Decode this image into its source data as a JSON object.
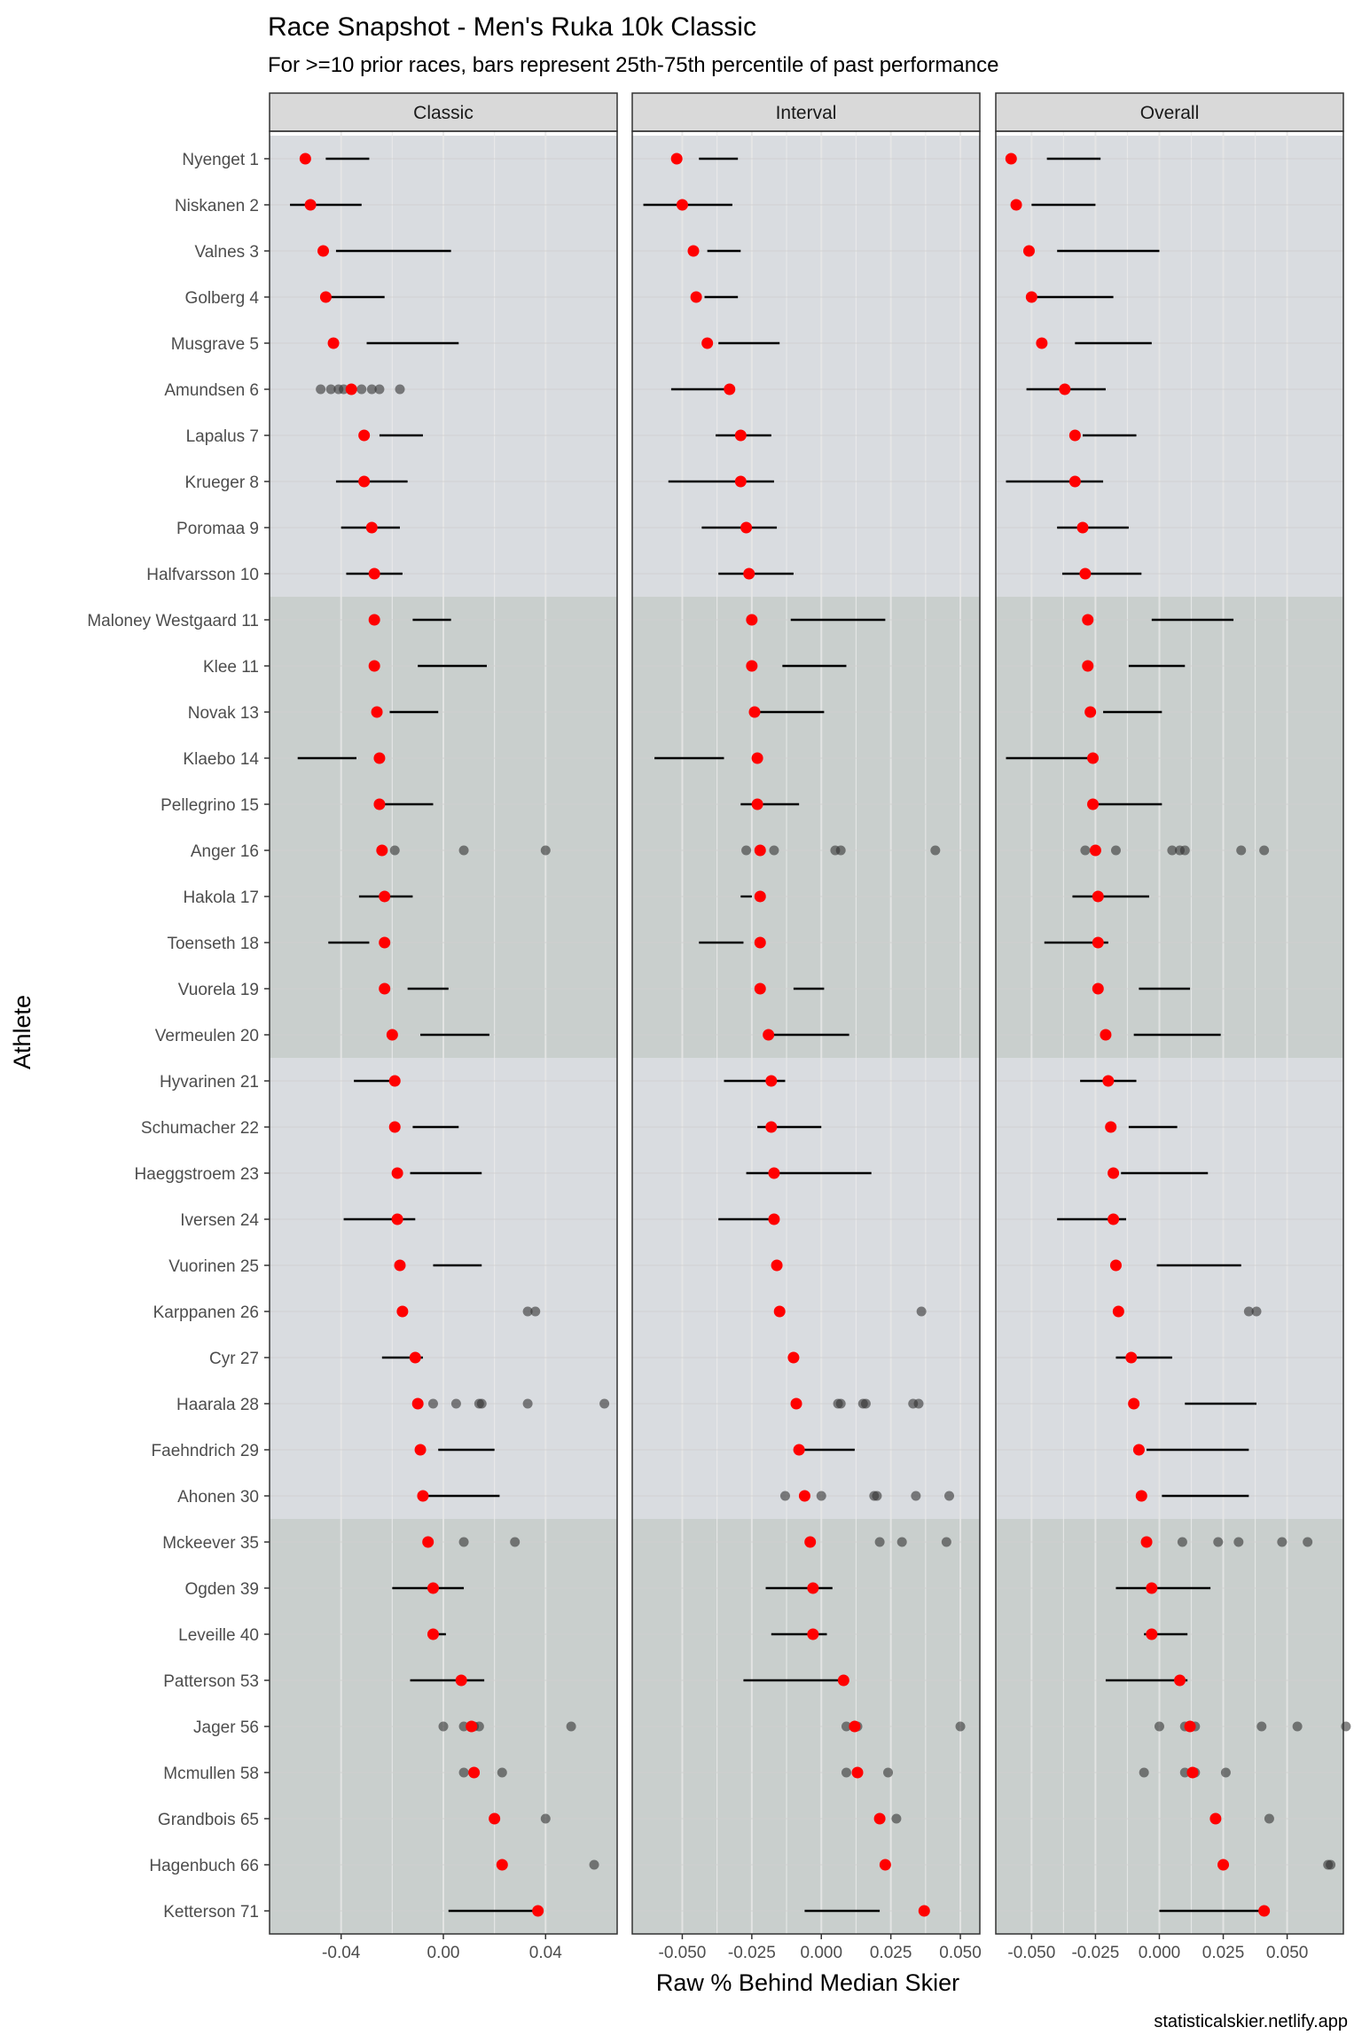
{
  "chart_data": {
    "type": "scatter",
    "title": "Race Snapshot -  Men's Ruka 10k Classic",
    "subtitle": "For >=10 prior races, bars represent 25th-75th percentile of past performance",
    "xlabel": "Raw % Behind Median Skier",
    "ylabel": "Athlete",
    "caption": "statisticalskier.netlify.app",
    "colors": {
      "current": "#ff0000",
      "past": "#333333",
      "bar": "#000000",
      "band_a": "#d9dce0",
      "band_b": "#c9cfcd",
      "strip": "#d9d9d9"
    },
    "groups": [
      {
        "start": 0,
        "end": 9,
        "shade": "band_a"
      },
      {
        "start": 10,
        "end": 19,
        "shade": "band_b"
      },
      {
        "start": 20,
        "end": 29,
        "shade": "band_a"
      },
      {
        "start": 30,
        "end": 38,
        "shade": "band_b"
      }
    ],
    "athletes": [
      "Nyenget 1",
      "Niskanen 2",
      "Valnes 3",
      "Golberg 4",
      "Musgrave 5",
      "Amundsen 6",
      "Lapalus 7",
      "Krueger 8",
      "Poromaa 9",
      "Halfvarsson 10",
      "Maloney Westgaard 11",
      "Klee 11",
      "Novak 13",
      "Klaebo 14",
      "Pellegrino 15",
      "Anger 16",
      "Hakola 17",
      "Toenseth 18",
      "Vuorela 19",
      "Vermeulen 20",
      "Hyvarinen 21",
      "Schumacher 22",
      "Haeggstroem 23",
      "Iversen 24",
      "Vuorinen 25",
      "Karppanen 26",
      "Cyr 27",
      "Haarala 28",
      "Faehndrich 29",
      "Ahonen 30",
      "Mckeever 35",
      "Ogden 39",
      "Leveille 40",
      "Patterson 53",
      "Jager 56",
      "Mcmullen 58",
      "Grandbois 65",
      "Hagenbuch 66",
      "Ketterson 71"
    ],
    "panels": [
      {
        "label": "Classic",
        "xlim": [
          -0.068,
          0.068
        ],
        "ticks": [
          -0.04,
          0.0,
          0.04
        ],
        "tick_labels": [
          "-0.04",
          "0.00",
          "0.04"
        ],
        "current": [
          -0.054,
          -0.052,
          -0.047,
          -0.046,
          -0.043,
          -0.036,
          -0.031,
          -0.031,
          -0.028,
          -0.027,
          -0.027,
          -0.027,
          -0.026,
          -0.025,
          -0.025,
          -0.024,
          -0.023,
          -0.023,
          -0.023,
          -0.02,
          -0.019,
          -0.019,
          -0.018,
          -0.018,
          -0.017,
          -0.016,
          -0.011,
          -0.01,
          -0.009,
          -0.008,
          -0.006,
          -0.004,
          -0.004,
          0.007,
          0.011,
          0.012,
          0.02,
          0.023,
          0.037
        ],
        "bars": [
          [
            -0.046,
            -0.029
          ],
          [
            -0.06,
            -0.032
          ],
          [
            -0.042,
            0.003
          ],
          [
            -0.044,
            -0.023
          ],
          [
            -0.03,
            0.006
          ],
          null,
          [
            -0.025,
            -0.008
          ],
          [
            -0.042,
            -0.014
          ],
          [
            -0.04,
            -0.017
          ],
          [
            -0.038,
            -0.016
          ],
          [
            -0.012,
            0.003
          ],
          [
            -0.01,
            0.017
          ],
          [
            -0.021,
            -0.002
          ],
          [
            -0.057,
            -0.034
          ],
          [
            -0.026,
            -0.004
          ],
          null,
          [
            -0.033,
            -0.012
          ],
          [
            -0.045,
            -0.029
          ],
          [
            -0.014,
            0.002
          ],
          [
            -0.009,
            0.018
          ],
          [
            -0.035,
            -0.02
          ],
          [
            -0.012,
            0.006
          ],
          [
            -0.013,
            0.015
          ],
          [
            -0.039,
            -0.011
          ],
          [
            -0.004,
            0.015
          ],
          null,
          [
            -0.024,
            -0.008
          ],
          null,
          [
            -0.002,
            0.02
          ],
          [
            -0.008,
            0.022
          ],
          null,
          [
            -0.02,
            0.008
          ],
          [
            -0.006,
            0.001
          ],
          [
            -0.013,
            0.016
          ],
          null,
          null,
          null,
          null,
          [
            0.002,
            0.036
          ]
        ],
        "past": [
          [],
          [],
          [],
          [],
          [],
          [
            -0.048,
            -0.044,
            -0.041,
            -0.039,
            -0.036,
            -0.032,
            -0.028,
            -0.025,
            -0.017
          ],
          [],
          [],
          [],
          [],
          [],
          [],
          [],
          [],
          [],
          [
            -0.019,
            0.008,
            0.04
          ],
          [],
          [],
          [],
          [],
          [],
          [],
          [],
          [],
          [],
          [
            0.033,
            0.036
          ],
          [],
          [
            -0.004,
            0.005,
            0.014,
            0.015,
            0.033,
            0.063
          ],
          [],
          [],
          [
            0.008,
            0.028
          ],
          [],
          [],
          [],
          [
            0.0,
            0.008,
            0.012,
            0.014,
            0.05
          ],
          [
            0.008,
            0.023
          ],
          [
            0.04
          ],
          [
            0.059
          ],
          []
        ]
      },
      {
        "label": "Interval",
        "xlim": [
          -0.068,
          0.057
        ],
        "ticks": [
          -0.05,
          -0.025,
          0.0,
          0.025,
          0.05
        ],
        "tick_labels": [
          "-0.050",
          "-0.025",
          "0.000",
          "0.025",
          "0.050"
        ],
        "current": [
          -0.052,
          -0.05,
          -0.046,
          -0.045,
          -0.041,
          -0.033,
          -0.029,
          -0.029,
          -0.027,
          -0.026,
          -0.025,
          -0.025,
          -0.024,
          -0.023,
          -0.023,
          -0.022,
          -0.022,
          -0.022,
          -0.022,
          -0.019,
          -0.018,
          -0.018,
          -0.017,
          -0.017,
          -0.016,
          -0.015,
          -0.01,
          -0.009,
          -0.008,
          -0.006,
          -0.004,
          -0.003,
          -0.003,
          0.008,
          0.012,
          0.013,
          0.021,
          0.023,
          0.037
        ],
        "bars": [
          [
            -0.044,
            -0.03
          ],
          [
            -0.064,
            -0.032
          ],
          [
            -0.041,
            -0.029
          ],
          [
            -0.042,
            -0.03
          ],
          [
            -0.037,
            -0.015
          ],
          [
            -0.054,
            -0.034
          ],
          [
            -0.038,
            -0.018
          ],
          [
            -0.055,
            -0.017
          ],
          [
            -0.043,
            -0.016
          ],
          [
            -0.037,
            -0.01
          ],
          [
            -0.011,
            0.023
          ],
          [
            -0.014,
            0.009
          ],
          [
            -0.024,
            0.001
          ],
          [
            -0.06,
            -0.035
          ],
          [
            -0.029,
            -0.008
          ],
          null,
          [
            -0.029,
            -0.025
          ],
          [
            -0.044,
            -0.028
          ],
          [
            -0.01,
            0.001
          ],
          [
            -0.02,
            0.01
          ],
          [
            -0.035,
            -0.013
          ],
          [
            -0.023,
            0.0
          ],
          [
            -0.027,
            0.018
          ],
          [
            -0.037,
            -0.018
          ],
          null,
          null,
          [
            -0.012,
            -0.008
          ],
          null,
          [
            -0.01,
            0.012
          ],
          null,
          null,
          [
            -0.02,
            0.004
          ],
          [
            -0.018,
            0.002
          ],
          [
            -0.028,
            0.008
          ],
          null,
          null,
          null,
          null,
          [
            -0.006,
            0.021
          ]
        ],
        "past": [
          [],
          [],
          [],
          [],
          [],
          [],
          [],
          [],
          [],
          [],
          [],
          [],
          [],
          [],
          [],
          [
            -0.027,
            -0.017,
            0.005,
            0.007,
            0.041
          ],
          [],
          [],
          [],
          [],
          [],
          [],
          [],
          [],
          [],
          [
            0.036
          ],
          [],
          [
            0.006,
            0.007,
            0.015,
            0.016,
            0.033,
            0.035
          ],
          [],
          [
            -0.013,
            0.0,
            0.019,
            0.02,
            0.034,
            0.046
          ],
          [
            0.021,
            0.029,
            0.045
          ],
          [],
          [],
          [],
          [
            0.009,
            0.013,
            0.05
          ],
          [
            0.009,
            0.013,
            0.024
          ],
          [
            0.027
          ],
          [],
          []
        ]
      },
      {
        "label": "Overall",
        "xlim": [
          -0.064,
          0.072
        ],
        "ticks": [
          -0.05,
          -0.025,
          0.0,
          0.025,
          0.05
        ],
        "tick_labels": [
          "-0.050",
          "-0.025",
          "0.000",
          "0.025",
          "0.050"
        ],
        "current": [
          -0.058,
          -0.056,
          -0.051,
          -0.05,
          -0.046,
          -0.037,
          -0.033,
          -0.033,
          -0.03,
          -0.029,
          -0.028,
          -0.028,
          -0.027,
          -0.026,
          -0.026,
          -0.025,
          -0.024,
          -0.024,
          -0.024,
          -0.021,
          -0.02,
          -0.019,
          -0.018,
          -0.018,
          -0.017,
          -0.016,
          -0.011,
          -0.01,
          -0.008,
          -0.007,
          -0.005,
          -0.003,
          -0.003,
          0.008,
          0.012,
          0.013,
          0.022,
          0.025,
          0.041
        ],
        "bars": [
          [
            -0.044,
            -0.023
          ],
          [
            -0.05,
            -0.025
          ],
          [
            -0.04,
            0.0
          ],
          [
            -0.05,
            -0.018
          ],
          [
            -0.033,
            -0.003
          ],
          [
            -0.052,
            -0.021
          ],
          [
            -0.03,
            -0.009
          ],
          [
            -0.06,
            -0.022
          ],
          [
            -0.04,
            -0.012
          ],
          [
            -0.038,
            -0.007
          ],
          [
            -0.003,
            0.029
          ],
          [
            -0.012,
            0.01
          ],
          [
            -0.022,
            0.001
          ],
          [
            -0.06,
            -0.025
          ],
          [
            -0.026,
            0.001
          ],
          null,
          [
            -0.034,
            -0.004
          ],
          [
            -0.045,
            -0.02
          ],
          [
            -0.008,
            0.012
          ],
          [
            -0.01,
            0.024
          ],
          [
            -0.031,
            -0.009
          ],
          [
            -0.012,
            0.007
          ],
          [
            -0.015,
            0.019
          ],
          [
            -0.04,
            -0.013
          ],
          [
            -0.001,
            0.032
          ],
          null,
          [
            -0.017,
            0.005
          ],
          [
            0.01,
            0.038
          ],
          [
            -0.005,
            0.035
          ],
          [
            0.001,
            0.035
          ],
          null,
          [
            -0.017,
            0.02
          ],
          [
            -0.006,
            0.011
          ],
          [
            -0.021,
            0.011
          ],
          null,
          null,
          null,
          null,
          [
            0.0,
            0.041
          ]
        ],
        "past": [
          [],
          [],
          [],
          [],
          [],
          [],
          [],
          [],
          [],
          [],
          [],
          [],
          [],
          [],
          [],
          [
            -0.029,
            -0.017,
            0.005,
            0.008,
            0.01,
            0.032,
            0.041
          ],
          [],
          [],
          [],
          [],
          [],
          [],
          [],
          [],
          [],
          [
            0.035,
            0.038
          ],
          [],
          [],
          [],
          [],
          [
            0.009,
            0.023,
            0.031,
            0.048,
            0.058
          ],
          [],
          [],
          [],
          [
            0.0,
            0.01,
            0.014,
            0.04,
            0.054,
            0.073
          ],
          [
            -0.006,
            0.01,
            0.014,
            0.026
          ],
          [
            0.043
          ],
          [
            0.066,
            0.067
          ],
          []
        ]
      }
    ]
  }
}
